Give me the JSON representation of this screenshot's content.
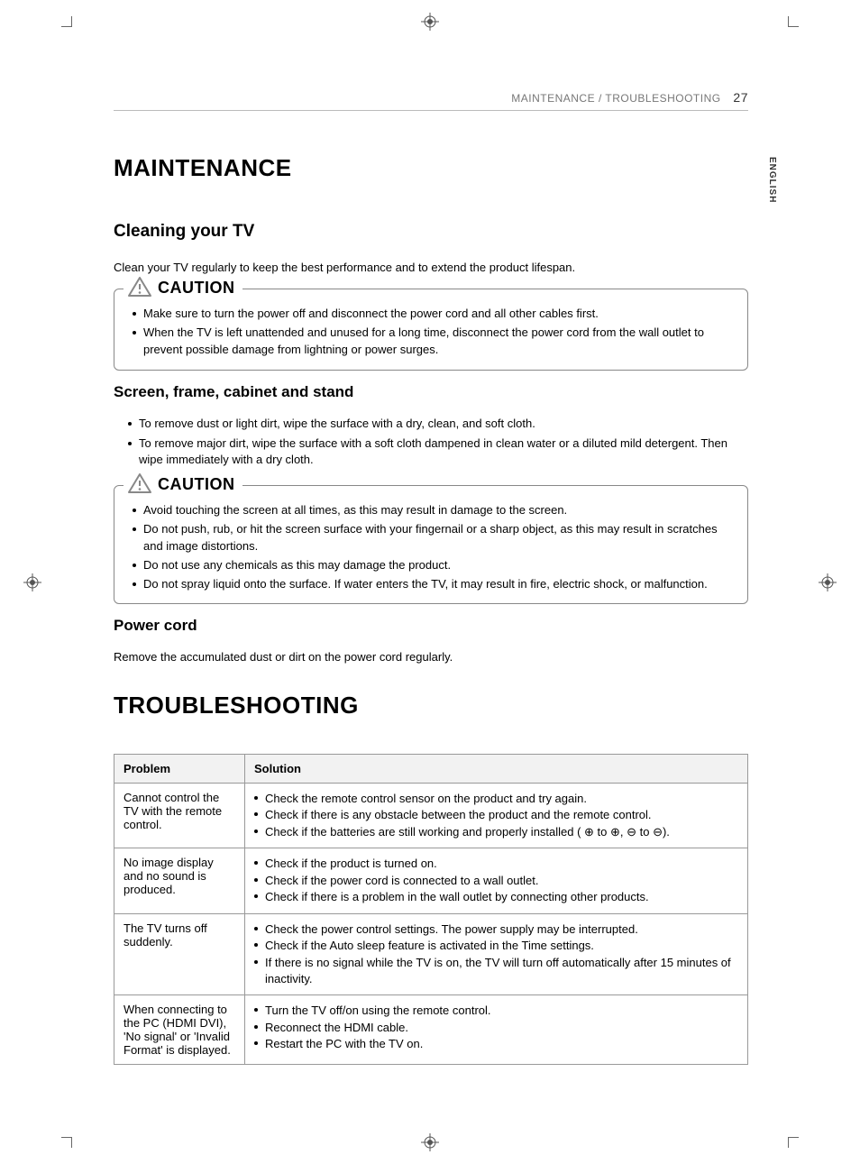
{
  "header": {
    "breadcrumb": "MAINTENANCE / TROUBLESHOOTING",
    "page_number": "27"
  },
  "side_tab": "ENGLISH",
  "maintenance": {
    "title": "MAINTENANCE",
    "cleaning": {
      "heading": "Cleaning your TV",
      "intro": "Clean your TV regularly to keep the best performance and to extend the product lifespan.",
      "caution1": {
        "label": "CAUTION",
        "items": [
          "Make sure to turn the power off and disconnect the power cord and all other cables first.",
          "When the TV is left unattended and unused for a long time, disconnect the power cord from the wall outlet to prevent possible damage from lightning or power surges."
        ]
      }
    },
    "screen": {
      "heading": "Screen, frame, cabinet and stand",
      "items": [
        "To remove dust or light dirt, wipe the surface with a dry, clean, and soft cloth.",
        "To remove major dirt, wipe the surface with a soft cloth dampened in clean water or a diluted mild detergent. Then wipe immediately with a dry cloth."
      ],
      "caution2": {
        "label": "CAUTION",
        "items": [
          "Avoid touching the screen at all times, as this may result in damage to the screen.",
          "Do not push, rub, or hit the screen surface with your fingernail or a sharp object, as this may result in scratches and image distortions.",
          "Do not use any chemicals as this may damage the product.",
          "Do not spray liquid onto the surface. If water enters the TV, it may result in fire, electric shock, or malfunction."
        ]
      }
    },
    "powercord": {
      "heading": "Power cord",
      "body": "Remove the accumulated dust or dirt on the power cord regularly."
    }
  },
  "troubleshooting": {
    "title": "TROUBLESHOOTING",
    "columns": [
      "Problem",
      "Solution"
    ],
    "rows": [
      {
        "problem": "Cannot control the TV with the remote control.",
        "solutions": [
          "Check the remote control sensor on the product and try again.",
          "Check if there is any obstacle between the product and the remote control.",
          "Check if the batteries are still working and properly installed ( ⊕ to ⊕, ⊖ to ⊖)."
        ]
      },
      {
        "problem": "No image display and no sound is produced.",
        "solutions": [
          "Check if the product is turned on.",
          "Check if the power cord is connected to a wall outlet.",
          "Check if there is a problem in the wall outlet by connecting other products."
        ]
      },
      {
        "problem": "The TV turns off suddenly.",
        "solutions": [
          "Check the power control settings. The power supply may be interrupted.",
          "Check if the Auto sleep feature is activated in the Time settings.",
          "If there is no signal while the TV is on, the TV will turn off automatically after 15 minutes of inactivity."
        ]
      },
      {
        "problem": "When connecting to the PC (HDMI DVI), 'No signal' or 'Invalid Format' is displayed.",
        "solutions": [
          "Turn the TV off/on using the remote control.",
          "Reconnect the HDMI cable.",
          "Restart the PC with the TV on."
        ]
      }
    ]
  }
}
